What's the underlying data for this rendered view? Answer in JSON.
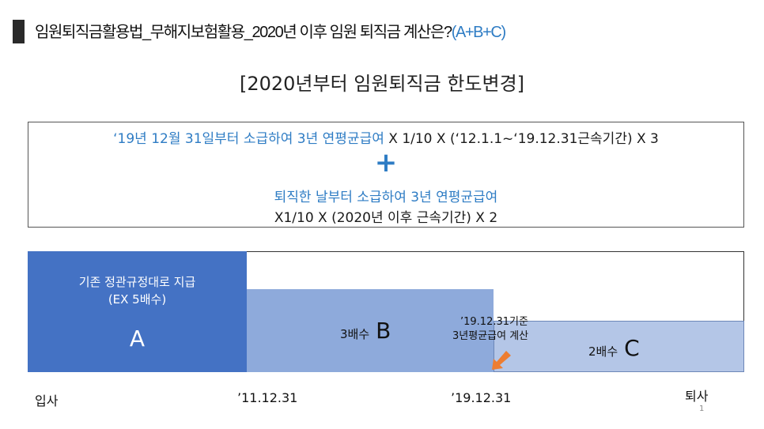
{
  "header": {
    "title": "임원퇴직금활용법_무해지보험활용_2020년 이후 임원 퇴직금 계산은?",
    "title_accent": "(A+B+C)"
  },
  "subtitle": "[2020년부터 임원퇴직금 한도변경]",
  "formula": {
    "line1_blue": "‘19년 12월 31일부터 소급하여 3년 연평균급여",
    "line1_rest": " X 1/10 X (‘12.1.1~‘19.12.31근속기간) X 3",
    "plus": "+",
    "line2": "퇴직한 날부터 소급하여 3년 연평균급여",
    "line3": "X1/10 X (2020년 이후 근속기간) X 2"
  },
  "diagram": {
    "a_desc1": "기존 정관규정대로 지급",
    "a_desc2": "(EX 5배수)",
    "a_letter": "A",
    "b_label": "3배수",
    "b_letter": "B",
    "c_label": "2배수",
    "c_letter": "C",
    "note1": "’19.12.31기준",
    "note2": "3년평균급여 계산",
    "arrow_color": "#ed7d31"
  },
  "timeline": {
    "join": "입사",
    "date1": "’11.12.31",
    "date2": "’19.12.31",
    "leave": "퇴사"
  },
  "page_number": "1",
  "colors": {
    "accent": "#2e7cc4",
    "block_a": "#4472c4",
    "block_b": "#8eaadb",
    "block_c": "#b4c6e7"
  }
}
